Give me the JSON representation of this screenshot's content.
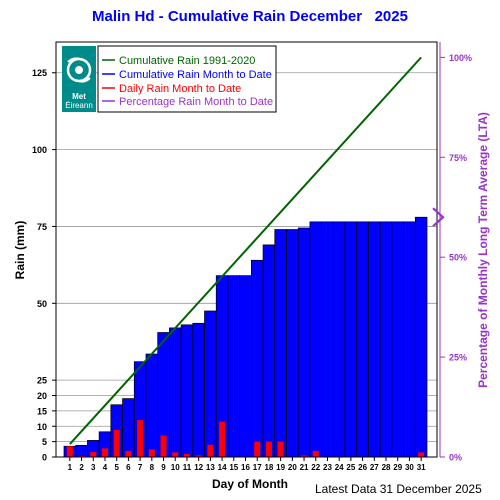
{
  "title": "Malin Hd - Cumulative Rain December",
  "title_year": "2025",
  "footer": "Latest Data 31 December 2025",
  "logo": {
    "line1": "Met",
    "line2": "Éireann"
  },
  "colors": {
    "cumulative_lta": "#006400",
    "cumulative_month": "#0000ff",
    "daily": "#ff0000",
    "percentage": "#9933cc",
    "title": "#0000ff"
  },
  "chart_data": {
    "type": "bar",
    "xlabel": "Day of Month",
    "ylabel": "Rain (mm)",
    "y2label": "Percentage  of Monthly Long Term Average (LTA)",
    "ylim": [
      0,
      135
    ],
    "y2lim": [
      0,
      100
    ],
    "y_ticks": [
      0,
      5,
      10,
      15,
      20,
      25,
      50,
      75,
      100,
      125
    ],
    "y2_ticks": [
      "0%",
      "25%",
      "50%",
      "75%",
      "100%"
    ],
    "x": [
      1,
      2,
      3,
      4,
      5,
      6,
      7,
      8,
      9,
      10,
      11,
      12,
      13,
      14,
      15,
      16,
      17,
      18,
      19,
      20,
      21,
      22,
      23,
      24,
      25,
      26,
      27,
      28,
      29,
      30,
      31
    ],
    "legend_position": "top-left",
    "series": [
      {
        "name": "Cumulative Rain 1991-2020",
        "kind": "line",
        "points": [
          [
            1,
            4.2
          ],
          [
            31,
            130
          ]
        ]
      },
      {
        "name": "Cumulative Rain Month to Date",
        "kind": "bar",
        "values": [
          3.5,
          3.8,
          5.4,
          8.2,
          17.0,
          19.0,
          31.0,
          33.5,
          40.5,
          42.0,
          43.0,
          43.5,
          47.5,
          59.0,
          59.0,
          59.0,
          64.0,
          69.0,
          74.0,
          74.0,
          74.5,
          76.5,
          76.5,
          76.5,
          76.5,
          76.5,
          76.5,
          76.5,
          76.5,
          76.5,
          78.0
        ]
      },
      {
        "name": "Daily Rain Month to Date",
        "kind": "bar",
        "values": [
          3.5,
          0.3,
          1.6,
          2.8,
          8.8,
          2.0,
          12.0,
          2.5,
          7.0,
          1.5,
          1.0,
          0.5,
          4.0,
          11.5,
          0.0,
          0.0,
          5.0,
          5.0,
          5.0,
          0.0,
          0.5,
          2.0,
          0.0,
          0.0,
          0.0,
          0.0,
          0.0,
          0.0,
          0.0,
          0.0,
          1.5
        ]
      },
      {
        "name": "Percentage Rain Month to Date",
        "kind": "marker",
        "value_percent": 60
      }
    ]
  }
}
